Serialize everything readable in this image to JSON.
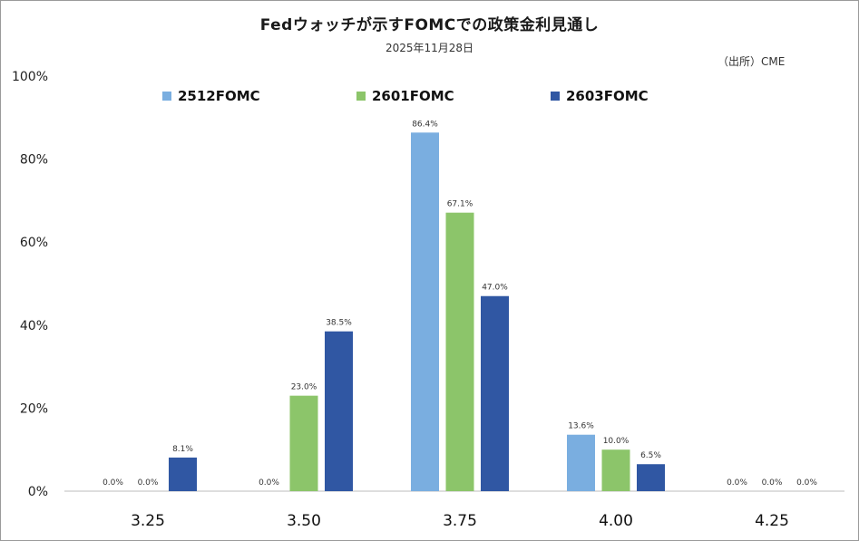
{
  "title": "Fedウォッチが示すFOMCでの政策金利見通し",
  "subtitle": "2025年11月28日",
  "source": "（出所）CME",
  "chart_data": {
    "type": "bar",
    "title": "Fedウォッチが示すFOMCでの政策金利見通し",
    "subtitle": "2025年11月28日",
    "categories": [
      "3.25",
      "3.50",
      "3.75",
      "4.00",
      "4.25"
    ],
    "series": [
      {
        "name": "2512FOMC",
        "color": "#7aaee0",
        "values": [
          0.0,
          0.0,
          86.4,
          13.6,
          0.0
        ]
      },
      {
        "name": "2601FOMC",
        "color": "#8cc56a",
        "values": [
          0.0,
          23.0,
          67.1,
          10.0,
          0.0
        ]
      },
      {
        "name": "2603FOMC",
        "color": "#3057a3",
        "values": [
          8.1,
          38.5,
          47.0,
          6.5,
          0.0
        ]
      }
    ],
    "ylim": [
      0,
      100
    ],
    "yticks": [
      "0%",
      "20%",
      "40%",
      "60%",
      "80%",
      "100%"
    ],
    "ytick_values": [
      0,
      20,
      40,
      60,
      80,
      100
    ],
    "data_label_suffix": "%",
    "legend": "top",
    "grid": false,
    "xlabel": "",
    "ylabel": ""
  }
}
